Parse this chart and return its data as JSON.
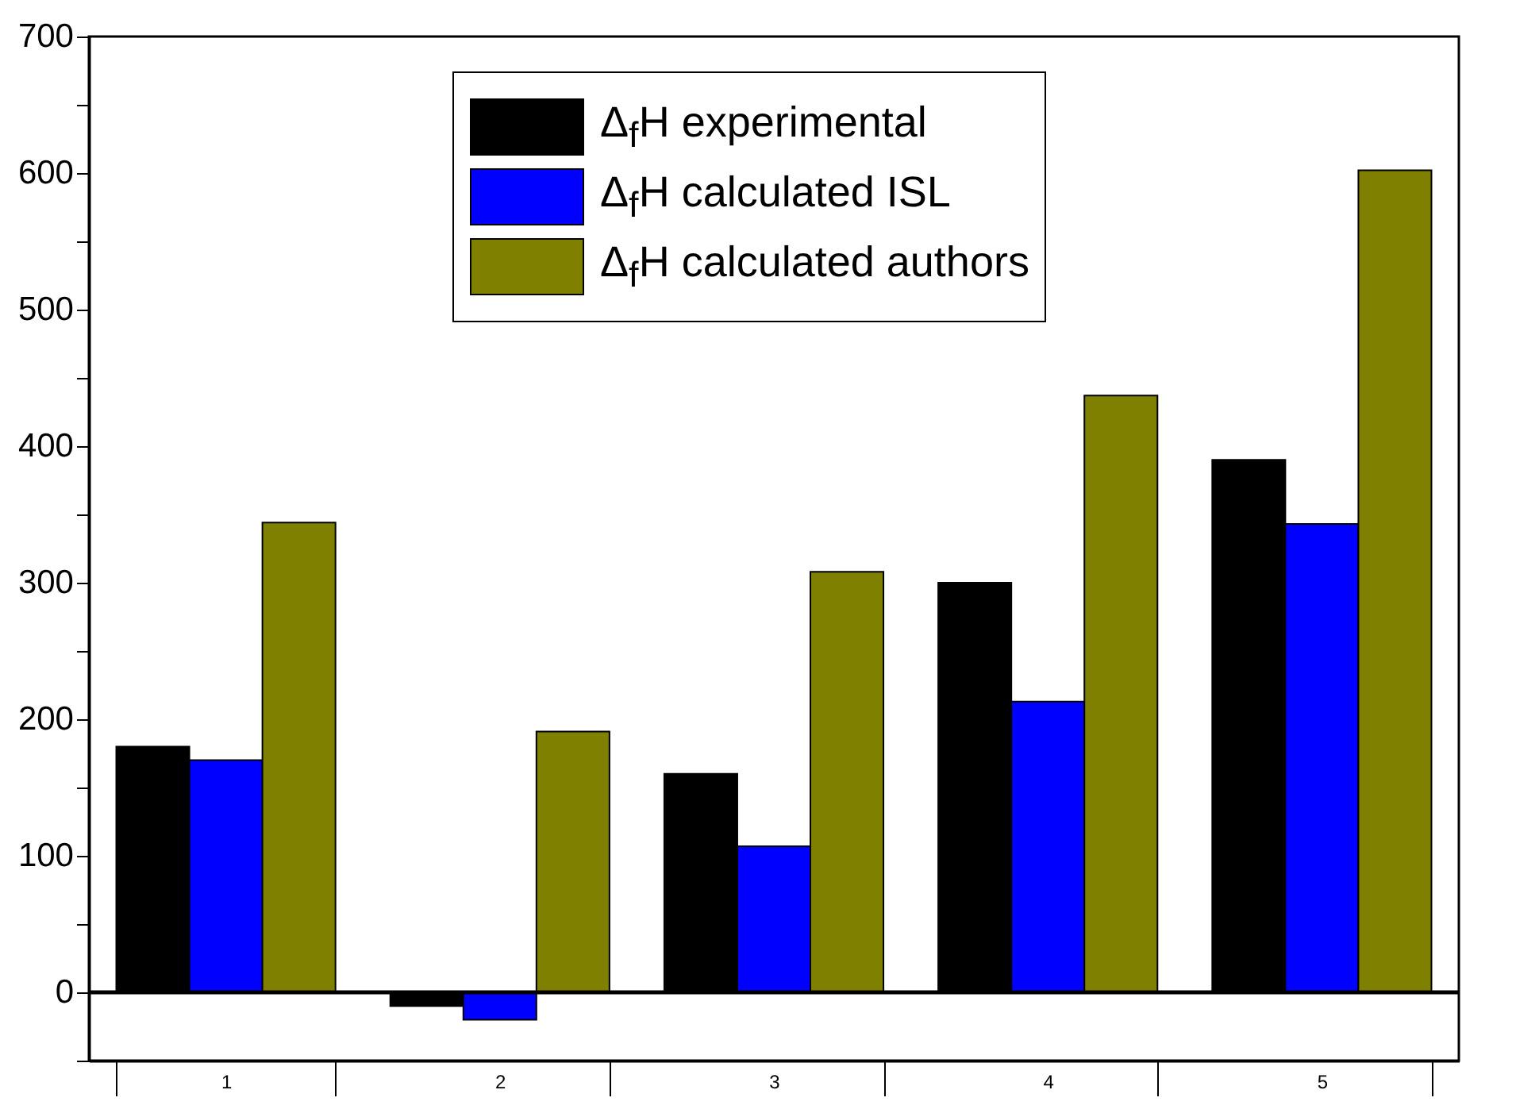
{
  "chart_data": {
    "type": "bar",
    "categories": [
      "1",
      "2",
      "3",
      "4",
      "5"
    ],
    "series": [
      {
        "name": "Δ$_{f}$H experimental",
        "color": "#000000",
        "values": [
          180,
          -10,
          160,
          300,
          390
        ]
      },
      {
        "name": "Δ$_{f}$H calculated ISL",
        "color": "#0000ff",
        "values": [
          170,
          -20,
          107,
          213,
          343
        ]
      },
      {
        "name": "Δ$_{f}$H calculated authors",
        "color": "#808000",
        "values": [
          344,
          191,
          308,
          437,
          602
        ]
      }
    ],
    "ylim": [
      -50,
      700
    ],
    "yticks": [
      {
        "value": -50,
        "label": null
      },
      0,
      {
        "value": 50,
        "label": null
      },
      100,
      {
        "value": 150,
        "label": null
      },
      200,
      {
        "value": 250,
        "label": null
      },
      300,
      {
        "value": 350,
        "label": null
      },
      400,
      {
        "value": 450,
        "label": null
      },
      500,
      {
        "value": 550,
        "label": null
      },
      600,
      {
        "value": 650,
        "label": null
      },
      700
    ],
    "ref_lines": [
      {
        "axis": "y",
        "value": 0,
        "color": "#000000"
      }
    ],
    "legend": "top",
    "grid": false
  }
}
